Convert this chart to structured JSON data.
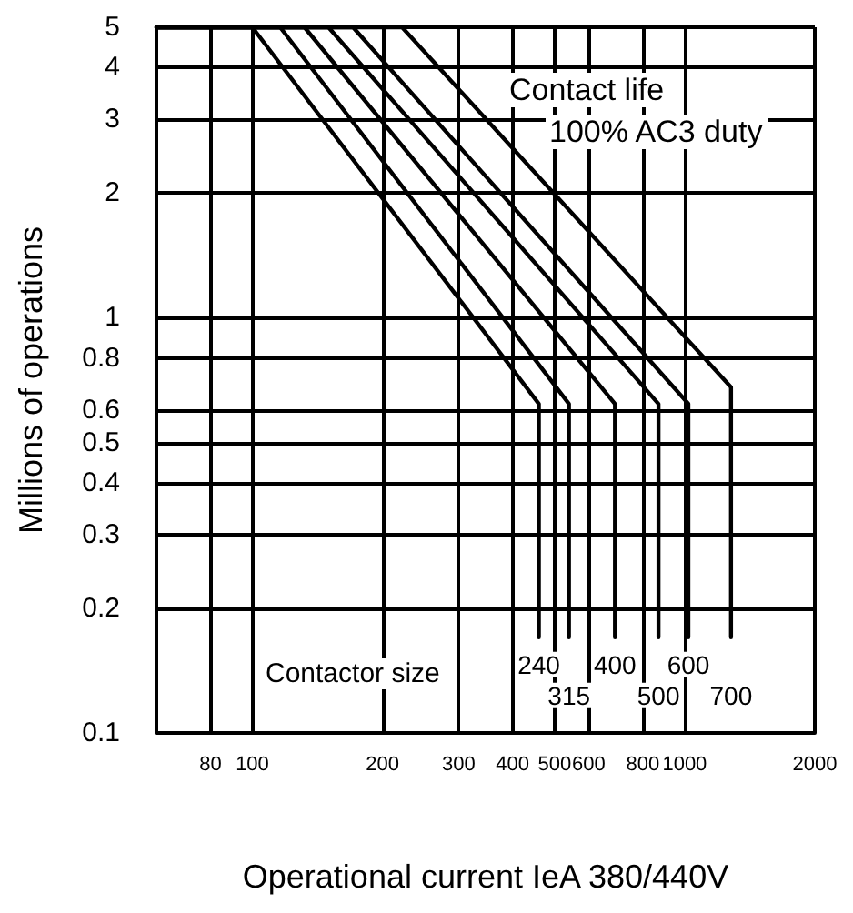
{
  "chart_data": {
    "type": "line",
    "xlabel": "Operational current IeA 380/440V",
    "ylabel": "Millions of operations",
    "log": "xy",
    "xlim": [
      60,
      2000
    ],
    "ylim": [
      0.1,
      5
    ],
    "xticks": [
      80,
      100,
      200,
      300,
      400,
      500,
      600,
      800,
      1000,
      2000
    ],
    "yticks": [
      0.1,
      0.2,
      0.3,
      0.4,
      0.5,
      0.6,
      0.8,
      1,
      2,
      3,
      4,
      5
    ],
    "grid": true,
    "legend": false,
    "marker": "none",
    "line_style": "solid",
    "annotations": [
      "Contact life",
      "100% AC3 duty",
      "Contactor size"
    ],
    "series": [
      {
        "name": "240",
        "color": "#000000",
        "x": [
          60,
          100,
          460,
          460
        ],
        "values": [
          5,
          5,
          0.62,
          0.17
        ]
      },
      {
        "name": "315",
        "color": "#000000",
        "x": [
          60,
          116,
          540,
          540
        ],
        "values": [
          5,
          5,
          0.62,
          0.17
        ]
      },
      {
        "name": "400",
        "color": "#000000",
        "x": [
          60,
          132,
          690,
          690
        ],
        "values": [
          5,
          5,
          0.62,
          0.17
        ]
      },
      {
        "name": "500",
        "color": "#000000",
        "x": [
          60,
          150,
          870,
          870
        ],
        "values": [
          5,
          5,
          0.62,
          0.17
        ]
      },
      {
        "name": "600",
        "color": "#000000",
        "x": [
          60,
          171,
          1020,
          1020
        ],
        "values": [
          5,
          5,
          0.62,
          0.17
        ]
      },
      {
        "name": "700",
        "color": "#000000",
        "x": [
          60,
          222,
          1280,
          1280
        ],
        "values": [
          5,
          5,
          0.68,
          0.17
        ]
      }
    ]
  }
}
